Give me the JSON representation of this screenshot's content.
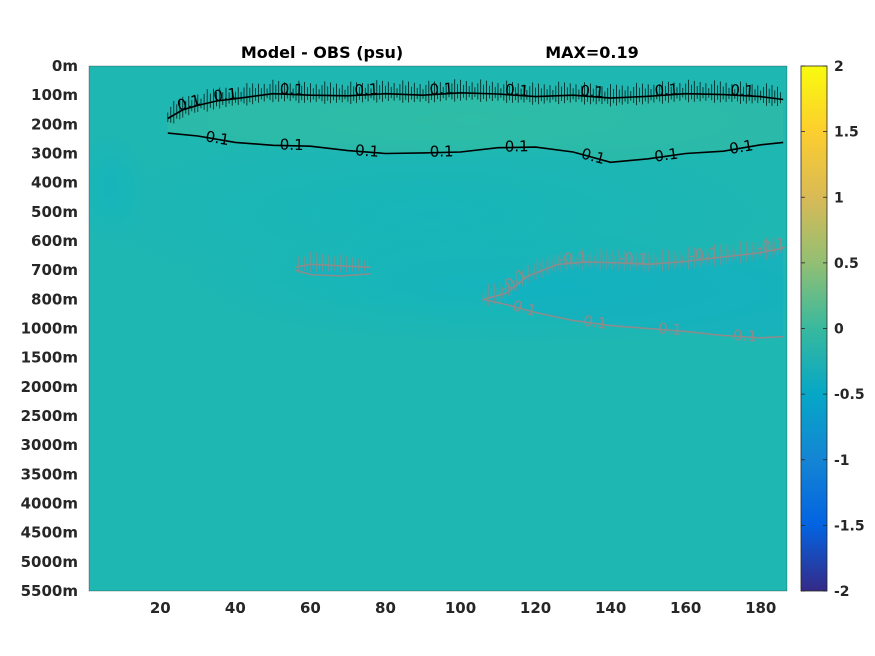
{
  "chart_data": {
    "type": "heatmap",
    "title": "Model - OBS (psu)",
    "subtitle": "MAX=0.19",
    "xlabel": "",
    "ylabel": "",
    "x_ticks": [
      20,
      40,
      60,
      80,
      100,
      120,
      140,
      160,
      180
    ],
    "xlim": [
      1,
      187
    ],
    "y_ticks": [
      "0m",
      "100m",
      "200m",
      "300m",
      "400m",
      "500m",
      "600m",
      "700m",
      "800m",
      "1000m",
      "1500m",
      "2000m",
      "2500m",
      "3000m",
      "3500m",
      "4000m",
      "4500m",
      "5000m",
      "5500m"
    ],
    "colorbar": {
      "ticks": [
        2,
        1.5,
        1,
        0.5,
        0,
        -0.5,
        -1,
        -1.5,
        -2
      ],
      "range": [
        -2,
        2
      ],
      "colormap": "parula"
    },
    "background_value": 0.0,
    "contours": [
      {
        "level": 0.1,
        "color": "#000000",
        "label": "0.1",
        "upper": [
          [
            22,
            180
          ],
          [
            26,
            150
          ],
          [
            30,
            135
          ],
          [
            35,
            120
          ],
          [
            40,
            112
          ],
          [
            50,
            95
          ],
          [
            60,
            100
          ],
          [
            70,
            102
          ],
          [
            80,
            95
          ],
          [
            90,
            100
          ],
          [
            100,
            92
          ],
          [
            110,
            96
          ],
          [
            120,
            105
          ],
          [
            130,
            100
          ],
          [
            140,
            110
          ],
          [
            150,
            104
          ],
          [
            160,
            95
          ],
          [
            170,
            98
          ],
          [
            180,
            105
          ],
          [
            186,
            115
          ]
        ],
        "lower": [
          [
            22,
            230
          ],
          [
            30,
            240
          ],
          [
            40,
            262
          ],
          [
            50,
            272
          ],
          [
            60,
            275
          ],
          [
            70,
            290
          ],
          [
            80,
            300
          ],
          [
            90,
            298
          ],
          [
            100,
            295
          ],
          [
            110,
            280
          ],
          [
            120,
            278
          ],
          [
            130,
            295
          ],
          [
            140,
            330
          ],
          [
            150,
            318
          ],
          [
            160,
            300
          ],
          [
            170,
            292
          ],
          [
            180,
            270
          ],
          [
            186,
            262
          ]
        ]
      },
      {
        "level": -0.1,
        "color": "#8c8c8c",
        "label": "-0.1",
        "upper": [
          [
            106,
            800
          ],
          [
            112,
            780
          ],
          [
            118,
            720
          ],
          [
            126,
            680
          ],
          [
            134,
            672
          ],
          [
            142,
            675
          ],
          [
            150,
            680
          ],
          [
            160,
            670
          ],
          [
            170,
            655
          ],
          [
            180,
            640
          ],
          [
            186,
            625
          ]
        ],
        "lower": [
          [
            106,
            800
          ],
          [
            112,
            835
          ],
          [
            120,
            890
          ],
          [
            130,
            945
          ],
          [
            140,
            980
          ],
          [
            150,
            1000
          ],
          [
            160,
            1050
          ],
          [
            170,
            1120
          ],
          [
            180,
            1160
          ],
          [
            186,
            1140
          ]
        ]
      },
      {
        "level": -0.1,
        "color": "#8c8c8c",
        "label": "",
        "upper": [
          [
            56,
            690
          ],
          [
            60,
            680
          ],
          [
            68,
            685
          ],
          [
            76,
            690
          ]
        ],
        "lower": [
          [
            56,
            700
          ],
          [
            60,
            715
          ],
          [
            68,
            720
          ],
          [
            76,
            712
          ]
        ]
      }
    ]
  }
}
